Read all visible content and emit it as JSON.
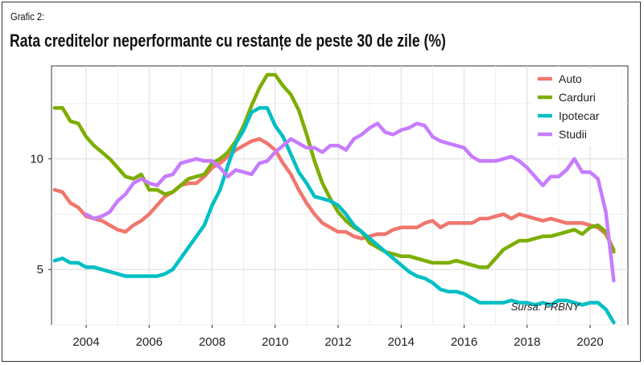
{
  "header": {
    "label": "Grafic 2:",
    "title": "Rata creditelor neperformante cu restanțe de peste 30 de zile (%)"
  },
  "source": "Sursa: FRBNY",
  "chart_data": {
    "type": "line",
    "title": "Rata creditelor neperformante cu restanțe de peste 30 de zile (%)",
    "xlabel": "",
    "ylabel": "",
    "xlim": [
      2002.9,
      2021.2
    ],
    "ylim": [
      2.5,
      14.2
    ],
    "x_ticks": [
      2004,
      2006,
      2008,
      2010,
      2012,
      2014,
      2016,
      2018,
      2020
    ],
    "y_ticks": [
      5,
      10
    ],
    "grid": true,
    "legend_position": "top-right",
    "series": [
      {
        "name": "Auto",
        "color": "#f0766d",
        "points": [
          [
            2003.0,
            8.6
          ],
          [
            2003.25,
            8.5
          ],
          [
            2003.5,
            8.0
          ],
          [
            2003.75,
            7.8
          ],
          [
            2004.0,
            7.4
          ],
          [
            2004.25,
            7.3
          ],
          [
            2004.5,
            7.2
          ],
          [
            2004.75,
            7.0
          ],
          [
            2005.0,
            6.8
          ],
          [
            2005.25,
            6.7
          ],
          [
            2005.5,
            7.0
          ],
          [
            2005.75,
            7.2
          ],
          [
            2006.0,
            7.5
          ],
          [
            2006.25,
            7.9
          ],
          [
            2006.5,
            8.3
          ],
          [
            2006.75,
            8.5
          ],
          [
            2007.0,
            8.8
          ],
          [
            2007.25,
            8.9
          ],
          [
            2007.5,
            8.9
          ],
          [
            2007.75,
            9.2
          ],
          [
            2008.0,
            9.6
          ],
          [
            2008.25,
            9.8
          ],
          [
            2008.5,
            10.1
          ],
          [
            2008.75,
            10.4
          ],
          [
            2009.0,
            10.6
          ],
          [
            2009.25,
            10.8
          ],
          [
            2009.5,
            10.9
          ],
          [
            2009.75,
            10.7
          ],
          [
            2010.0,
            10.4
          ],
          [
            2010.25,
            9.8
          ],
          [
            2010.5,
            9.3
          ],
          [
            2010.75,
            8.6
          ],
          [
            2011.0,
            8.0
          ],
          [
            2011.25,
            7.5
          ],
          [
            2011.5,
            7.1
          ],
          [
            2011.75,
            6.9
          ],
          [
            2012.0,
            6.7
          ],
          [
            2012.25,
            6.7
          ],
          [
            2012.5,
            6.5
          ],
          [
            2012.75,
            6.4
          ],
          [
            2013.0,
            6.5
          ],
          [
            2013.25,
            6.6
          ],
          [
            2013.5,
            6.6
          ],
          [
            2013.75,
            6.8
          ],
          [
            2014.0,
            6.9
          ],
          [
            2014.25,
            6.9
          ],
          [
            2014.5,
            6.9
          ],
          [
            2014.75,
            7.1
          ],
          [
            2015.0,
            7.2
          ],
          [
            2015.25,
            6.9
          ],
          [
            2015.5,
            7.1
          ],
          [
            2015.75,
            7.1
          ],
          [
            2016.0,
            7.1
          ],
          [
            2016.25,
            7.1
          ],
          [
            2016.5,
            7.3
          ],
          [
            2016.75,
            7.3
          ],
          [
            2017.0,
            7.4
          ],
          [
            2017.25,
            7.5
          ],
          [
            2017.5,
            7.3
          ],
          [
            2017.75,
            7.5
          ],
          [
            2018.0,
            7.4
          ],
          [
            2018.25,
            7.3
          ],
          [
            2018.5,
            7.2
          ],
          [
            2018.75,
            7.3
          ],
          [
            2019.0,
            7.2
          ],
          [
            2019.25,
            7.1
          ],
          [
            2019.5,
            7.1
          ],
          [
            2019.75,
            7.1
          ],
          [
            2020.0,
            7.0
          ],
          [
            2020.25,
            6.9
          ],
          [
            2020.5,
            6.6
          ],
          [
            2020.75,
            5.9
          ]
        ]
      },
      {
        "name": "Carduri",
        "color": "#7cae00",
        "points": [
          [
            2003.0,
            12.3
          ],
          [
            2003.25,
            12.3
          ],
          [
            2003.5,
            11.7
          ],
          [
            2003.75,
            11.6
          ],
          [
            2004.0,
            11.0
          ],
          [
            2004.25,
            10.6
          ],
          [
            2004.5,
            10.3
          ],
          [
            2004.75,
            10.0
          ],
          [
            2005.0,
            9.6
          ],
          [
            2005.25,
            9.2
          ],
          [
            2005.5,
            9.1
          ],
          [
            2005.75,
            9.3
          ],
          [
            2006.0,
            8.6
          ],
          [
            2006.25,
            8.6
          ],
          [
            2006.5,
            8.4
          ],
          [
            2006.75,
            8.5
          ],
          [
            2007.0,
            8.8
          ],
          [
            2007.25,
            9.1
          ],
          [
            2007.5,
            9.2
          ],
          [
            2007.75,
            9.3
          ],
          [
            2008.0,
            9.8
          ],
          [
            2008.25,
            10.0
          ],
          [
            2008.5,
            10.3
          ],
          [
            2008.75,
            10.8
          ],
          [
            2009.0,
            11.5
          ],
          [
            2009.25,
            12.4
          ],
          [
            2009.5,
            13.2
          ],
          [
            2009.75,
            13.8
          ],
          [
            2010.0,
            13.8
          ],
          [
            2010.25,
            13.3
          ],
          [
            2010.5,
            12.9
          ],
          [
            2010.75,
            12.2
          ],
          [
            2011.0,
            11.1
          ],
          [
            2011.25,
            9.9
          ],
          [
            2011.5,
            8.9
          ],
          [
            2011.75,
            8.2
          ],
          [
            2012.0,
            7.6
          ],
          [
            2012.25,
            7.2
          ],
          [
            2012.5,
            6.9
          ],
          [
            2012.75,
            6.7
          ],
          [
            2013.0,
            6.2
          ],
          [
            2013.25,
            6.0
          ],
          [
            2013.5,
            5.8
          ],
          [
            2013.75,
            5.7
          ],
          [
            2014.0,
            5.6
          ],
          [
            2014.25,
            5.6
          ],
          [
            2014.5,
            5.5
          ],
          [
            2014.75,
            5.4
          ],
          [
            2015.0,
            5.3
          ],
          [
            2015.25,
            5.3
          ],
          [
            2015.5,
            5.3
          ],
          [
            2015.75,
            5.4
          ],
          [
            2016.0,
            5.3
          ],
          [
            2016.25,
            5.2
          ],
          [
            2016.5,
            5.1
          ],
          [
            2016.75,
            5.1
          ],
          [
            2017.0,
            5.5
          ],
          [
            2017.25,
            5.9
          ],
          [
            2017.5,
            6.1
          ],
          [
            2017.75,
            6.3
          ],
          [
            2018.0,
            6.3
          ],
          [
            2018.25,
            6.4
          ],
          [
            2018.5,
            6.5
          ],
          [
            2018.75,
            6.5
          ],
          [
            2019.0,
            6.6
          ],
          [
            2019.25,
            6.7
          ],
          [
            2019.5,
            6.8
          ],
          [
            2019.75,
            6.6
          ],
          [
            2020.0,
            6.9
          ],
          [
            2020.25,
            7.0
          ],
          [
            2020.5,
            6.7
          ],
          [
            2020.75,
            5.8
          ]
        ]
      },
      {
        "name": "Ipotecar",
        "color": "#00bfc4",
        "points": [
          [
            2003.0,
            5.4
          ],
          [
            2003.25,
            5.5
          ],
          [
            2003.5,
            5.3
          ],
          [
            2003.75,
            5.3
          ],
          [
            2004.0,
            5.1
          ],
          [
            2004.25,
            5.1
          ],
          [
            2004.5,
            5.0
          ],
          [
            2004.75,
            4.9
          ],
          [
            2005.0,
            4.8
          ],
          [
            2005.25,
            4.7
          ],
          [
            2005.5,
            4.7
          ],
          [
            2005.75,
            4.7
          ],
          [
            2006.0,
            4.7
          ],
          [
            2006.25,
            4.7
          ],
          [
            2006.5,
            4.8
          ],
          [
            2006.75,
            5.0
          ],
          [
            2007.0,
            5.5
          ],
          [
            2007.25,
            6.0
          ],
          [
            2007.5,
            6.5
          ],
          [
            2007.75,
            7.0
          ],
          [
            2008.0,
            7.9
          ],
          [
            2008.25,
            8.6
          ],
          [
            2008.5,
            9.7
          ],
          [
            2008.75,
            10.7
          ],
          [
            2009.0,
            11.3
          ],
          [
            2009.25,
            12.1
          ],
          [
            2009.5,
            12.3
          ],
          [
            2009.75,
            12.3
          ],
          [
            2010.0,
            11.5
          ],
          [
            2010.25,
            11.0
          ],
          [
            2010.5,
            10.2
          ],
          [
            2010.75,
            9.4
          ],
          [
            2011.0,
            8.9
          ],
          [
            2011.25,
            8.3
          ],
          [
            2011.5,
            8.2
          ],
          [
            2011.75,
            8.1
          ],
          [
            2012.0,
            7.9
          ],
          [
            2012.25,
            7.5
          ],
          [
            2012.5,
            7.0
          ],
          [
            2012.75,
            6.7
          ],
          [
            2013.0,
            6.4
          ],
          [
            2013.25,
            6.1
          ],
          [
            2013.5,
            5.8
          ],
          [
            2013.75,
            5.5
          ],
          [
            2014.0,
            5.2
          ],
          [
            2014.25,
            4.9
          ],
          [
            2014.5,
            4.7
          ],
          [
            2014.75,
            4.6
          ],
          [
            2015.0,
            4.4
          ],
          [
            2015.25,
            4.1
          ],
          [
            2015.5,
            4.0
          ],
          [
            2015.75,
            4.0
          ],
          [
            2016.0,
            3.9
          ],
          [
            2016.25,
            3.7
          ],
          [
            2016.5,
            3.5
          ],
          [
            2016.75,
            3.5
          ],
          [
            2017.0,
            3.5
          ],
          [
            2017.25,
            3.5
          ],
          [
            2017.5,
            3.6
          ],
          [
            2017.75,
            3.5
          ],
          [
            2018.0,
            3.5
          ],
          [
            2018.25,
            3.4
          ],
          [
            2018.5,
            3.5
          ],
          [
            2018.75,
            3.4
          ],
          [
            2019.0,
            3.6
          ],
          [
            2019.25,
            3.6
          ],
          [
            2019.5,
            3.5
          ],
          [
            2019.75,
            3.4
          ],
          [
            2020.0,
            3.5
          ],
          [
            2020.25,
            3.5
          ],
          [
            2020.5,
            3.2
          ],
          [
            2020.75,
            2.6
          ]
        ]
      },
      {
        "name": "Studii",
        "color": "#c77cff",
        "points": [
          [
            2004.0,
            7.5
          ],
          [
            2004.25,
            7.3
          ],
          [
            2004.5,
            7.4
          ],
          [
            2004.75,
            7.6
          ],
          [
            2005.0,
            8.1
          ],
          [
            2005.25,
            8.4
          ],
          [
            2005.5,
            8.9
          ],
          [
            2005.75,
            9.1
          ],
          [
            2006.0,
            8.9
          ],
          [
            2006.25,
            8.8
          ],
          [
            2006.5,
            9.2
          ],
          [
            2006.75,
            9.3
          ],
          [
            2007.0,
            9.8
          ],
          [
            2007.25,
            9.9
          ],
          [
            2007.5,
            10.0
          ],
          [
            2007.75,
            9.9
          ],
          [
            2008.0,
            9.9
          ],
          [
            2008.25,
            9.6
          ],
          [
            2008.5,
            9.2
          ],
          [
            2008.75,
            9.5
          ],
          [
            2009.0,
            9.4
          ],
          [
            2009.25,
            9.3
          ],
          [
            2009.5,
            9.8
          ],
          [
            2009.75,
            9.9
          ],
          [
            2010.0,
            10.3
          ],
          [
            2010.25,
            10.6
          ],
          [
            2010.5,
            10.9
          ],
          [
            2010.75,
            10.7
          ],
          [
            2011.0,
            10.5
          ],
          [
            2011.25,
            10.5
          ],
          [
            2011.5,
            10.3
          ],
          [
            2011.75,
            10.6
          ],
          [
            2012.0,
            10.6
          ],
          [
            2012.25,
            10.4
          ],
          [
            2012.5,
            10.9
          ],
          [
            2012.75,
            11.1
          ],
          [
            2013.0,
            11.4
          ],
          [
            2013.25,
            11.6
          ],
          [
            2013.5,
            11.2
          ],
          [
            2013.75,
            11.1
          ],
          [
            2014.0,
            11.3
          ],
          [
            2014.25,
            11.4
          ],
          [
            2014.5,
            11.6
          ],
          [
            2014.75,
            11.5
          ],
          [
            2015.0,
            11.0
          ],
          [
            2015.25,
            10.8
          ],
          [
            2015.5,
            10.7
          ],
          [
            2015.75,
            10.6
          ],
          [
            2016.0,
            10.5
          ],
          [
            2016.25,
            10.1
          ],
          [
            2016.5,
            9.9
          ],
          [
            2016.75,
            9.9
          ],
          [
            2017.0,
            9.9
          ],
          [
            2017.25,
            10.0
          ],
          [
            2017.5,
            10.1
          ],
          [
            2017.75,
            9.9
          ],
          [
            2018.0,
            9.6
          ],
          [
            2018.25,
            9.2
          ],
          [
            2018.5,
            8.8
          ],
          [
            2018.75,
            9.2
          ],
          [
            2019.0,
            9.2
          ],
          [
            2019.25,
            9.5
          ],
          [
            2019.5,
            10.0
          ],
          [
            2019.75,
            9.4
          ],
          [
            2020.0,
            9.4
          ],
          [
            2020.25,
            9.1
          ],
          [
            2020.5,
            7.6
          ],
          [
            2020.75,
            4.5
          ]
        ]
      }
    ]
  }
}
